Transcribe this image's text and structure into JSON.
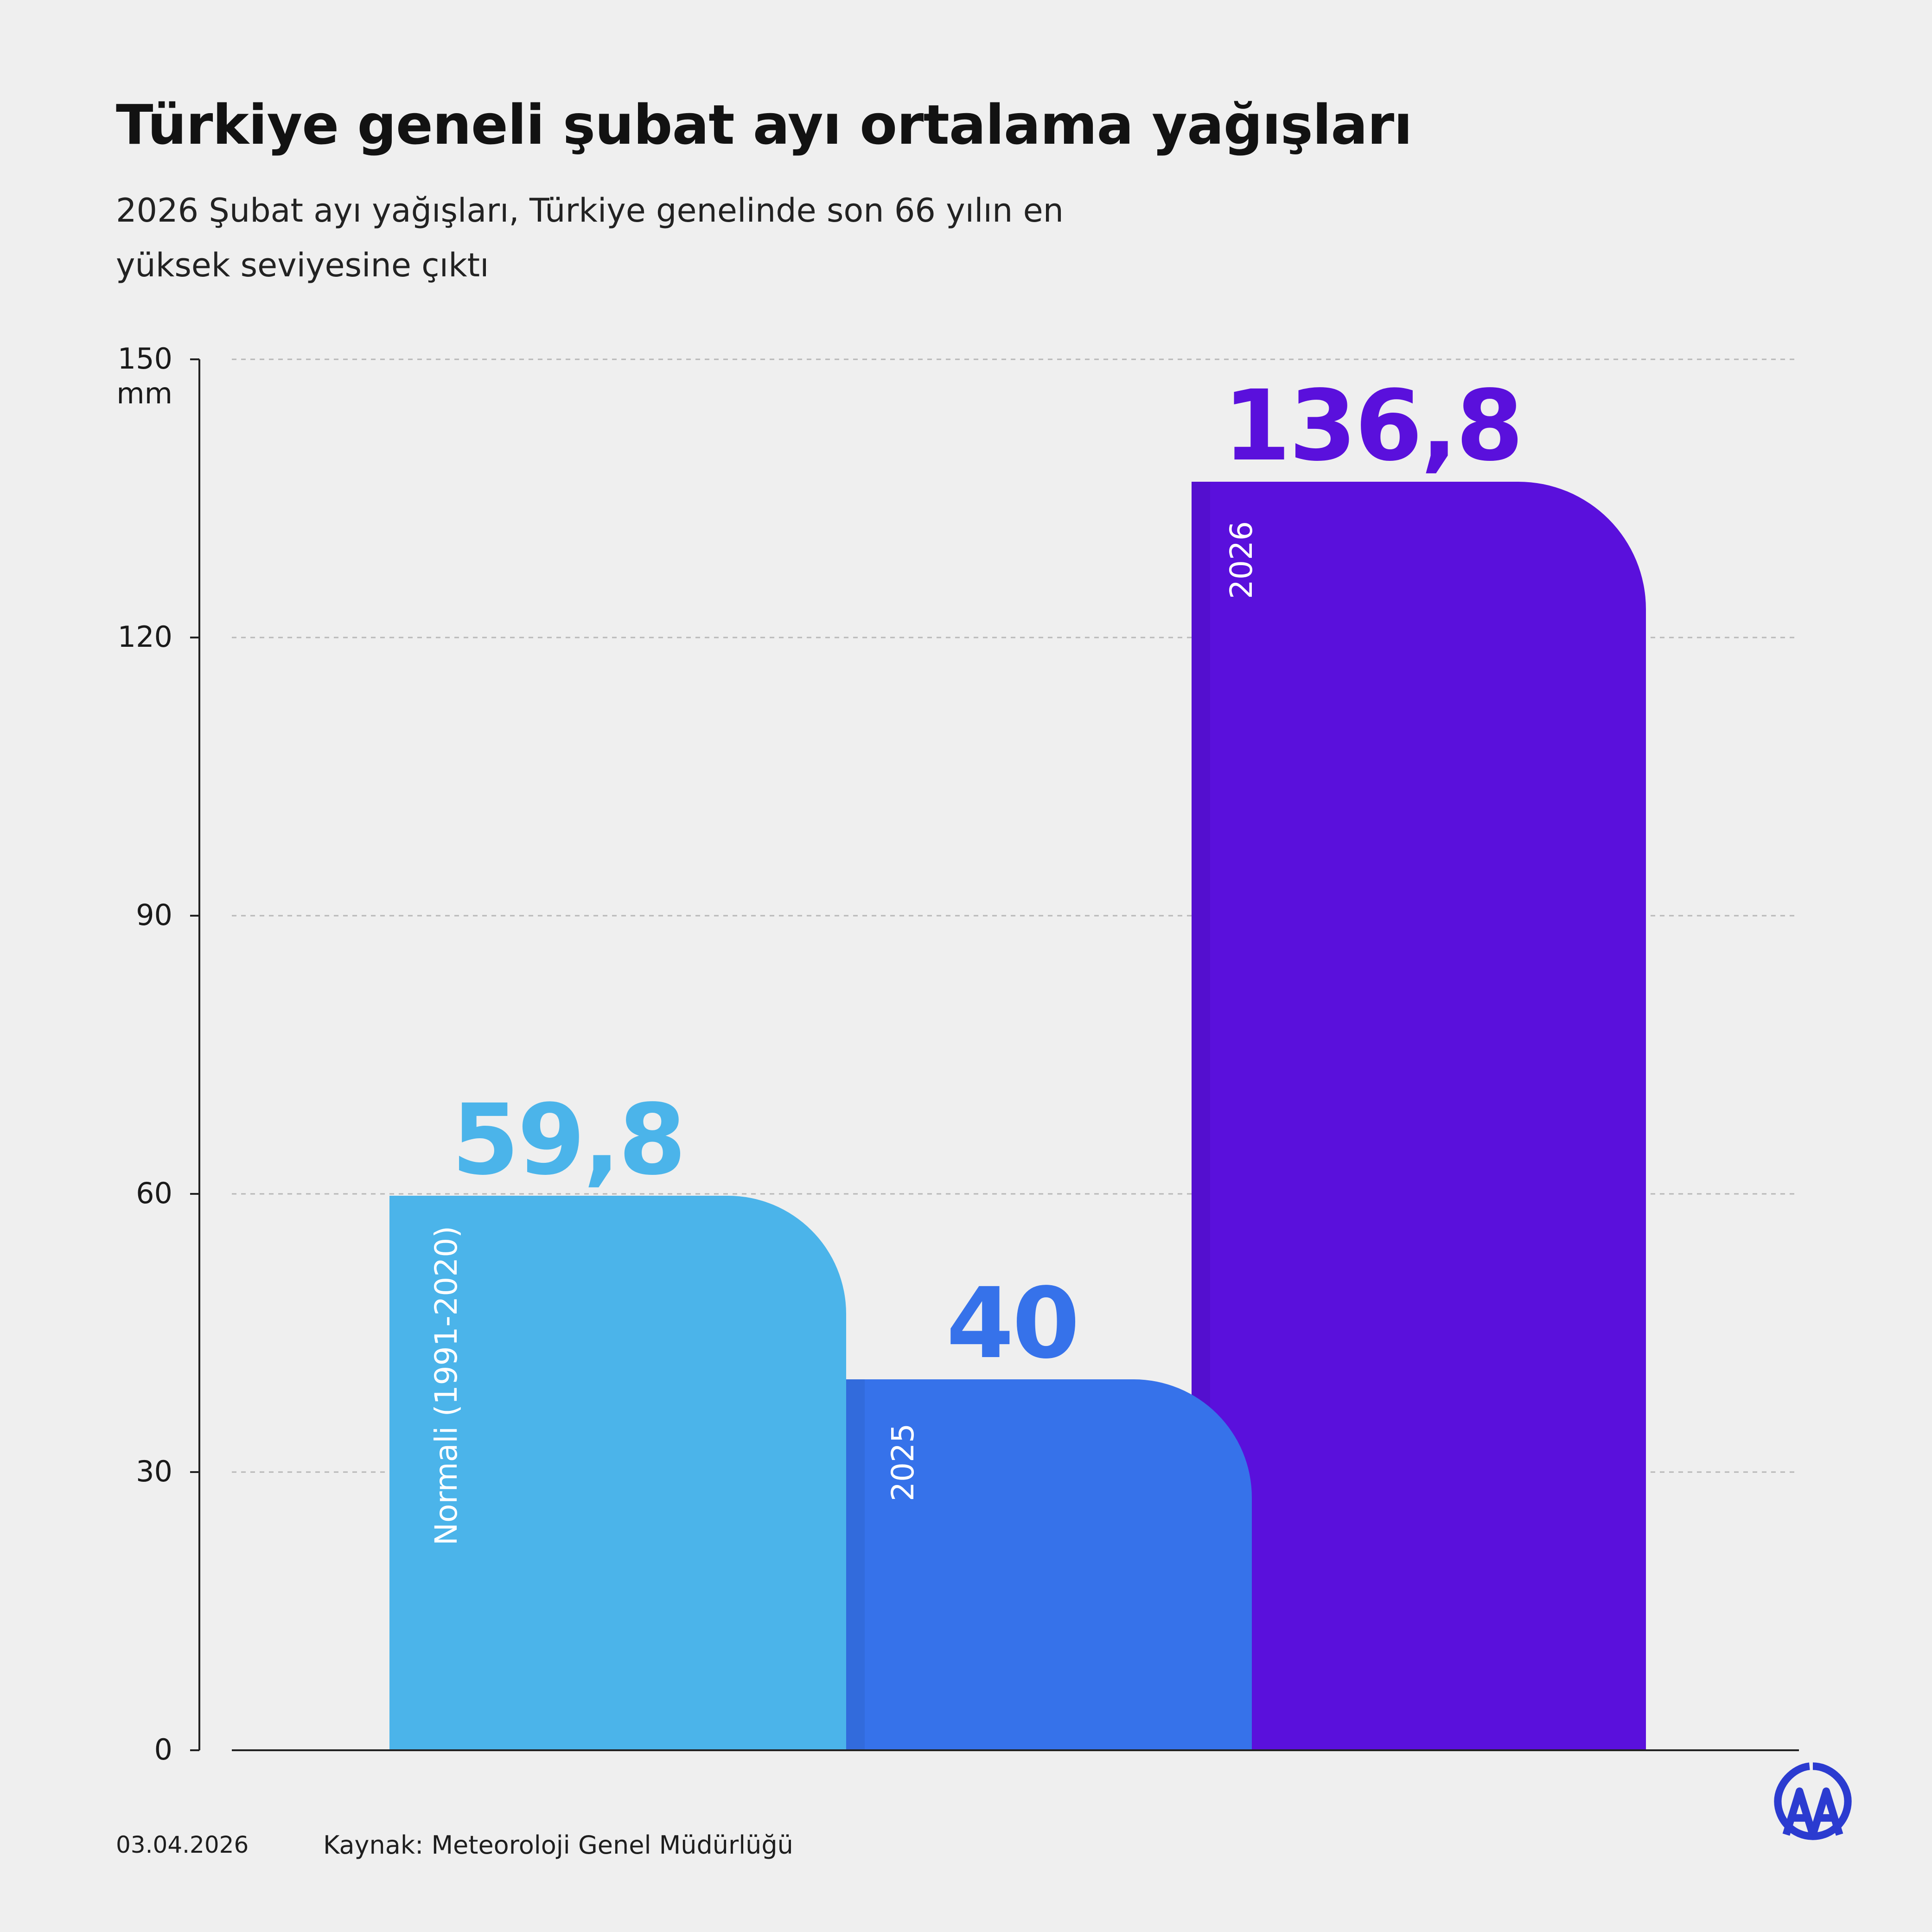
{
  "title": "Türkiye geneli şubat ayı ortalama yağışları",
  "subtitle": "2026 Şubat ayı yağışları, Türkiye genelinde son 66 yılın en yüksek seviyesine çıktı",
  "footer": {
    "date": "03.04.2026",
    "source": "Kaynak: Meteoroloji Genel Müdürlüğü"
  },
  "logo": {
    "name": "aa-logo-icon",
    "color": "#2b3bd0"
  },
  "chart_data": {
    "type": "bar",
    "title": "Türkiye geneli şubat ayı ortalama yağışları",
    "ylabel": "mm",
    "ylim": [
      0,
      150
    ],
    "yticks": [
      0,
      30,
      60,
      90,
      120,
      150
    ],
    "grid": true,
    "categories": [
      "Normali (1991-2020)",
      "2025",
      "2026"
    ],
    "values": [
      59.8,
      40,
      136.8
    ],
    "value_labels": [
      "59,8",
      "40",
      "136,8"
    ],
    "colors": [
      "#4bb4ea",
      "#3672ea",
      "#5a10dc"
    ]
  }
}
